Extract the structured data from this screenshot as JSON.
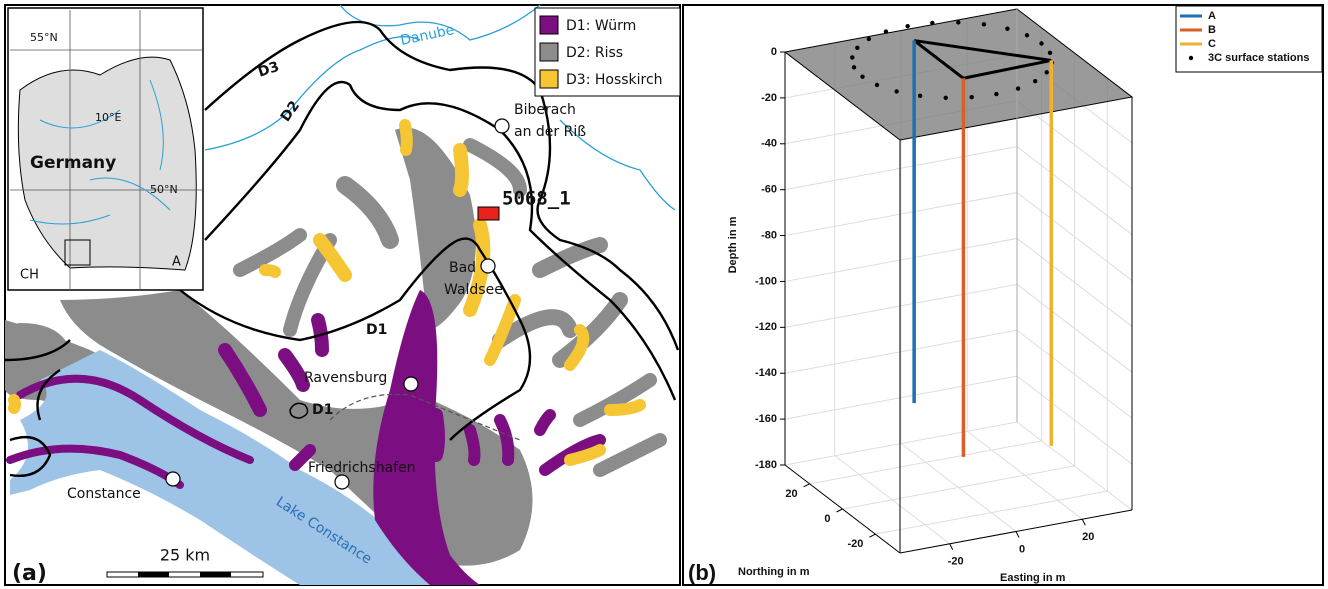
{
  "panel_a": {
    "label": "(a)",
    "legend": [
      {
        "label": "D1: Würm",
        "color": "#7b0f82"
      },
      {
        "label": "D2: Riss",
        "color": "#8c8c8c"
      },
      {
        "label": "D3: Hosskirch",
        "color": "#f5c533"
      }
    ],
    "river": "Danube",
    "boundaries": [
      "D3",
      "D2",
      "D1",
      "D1"
    ],
    "towns": [
      [
        "Biberach",
        "an der Riß"
      ],
      [
        "Bad",
        "Waldsee"
      ],
      [
        "Ravensburg"
      ],
      [
        "Friedrichshafen"
      ],
      [
        "Constance"
      ]
    ],
    "lake": "Lake Constance",
    "site": "5068_1",
    "scale": "25 km",
    "inset": {
      "labels": [
        "55°N",
        "10°E",
        "Germany",
        "50°N",
        "CH",
        "A"
      ]
    }
  },
  "chart_data": {
    "type": "line3d",
    "label": "(b)",
    "xlabel": "Easting in m",
    "ylabel": "Northing in m",
    "zlabel": "Depth in m",
    "xlim": [
      -35,
      35
    ],
    "ylim": [
      -35,
      35
    ],
    "zlim": [
      -180,
      0
    ],
    "xticks": [
      -20,
      0,
      20
    ],
    "yticks": [
      -20,
      0,
      20
    ],
    "zticks": [
      0,
      -20,
      -40,
      -60,
      -80,
      -100,
      -120,
      -140,
      -160,
      -180
    ],
    "grid": true,
    "legend": "top right",
    "series": [
      {
        "name": "A",
        "color": "#1f6fb5",
        "x": [
          0,
          0
        ],
        "y": [
          27,
          27
        ],
        "z": [
          0,
          -158
        ]
      },
      {
        "name": "B",
        "color": "#d95f26",
        "x": [
          0,
          0
        ],
        "y": [
          -3,
          -3
        ],
        "z": [
          0,
          -165
        ]
      },
      {
        "name": "C",
        "color": "#eeb22e",
        "x": [
          27,
          27
        ],
        "y": [
          -2,
          -2
        ],
        "z": [
          0,
          -168
        ]
      }
    ],
    "stations": {
      "name": "3C surface stations",
      "color": "#000000",
      "x": [
        30,
        29.1,
        26.4,
        22.1,
        16.5,
        10,
        3,
        -4,
        -10.5,
        -16.1,
        -20.4,
        -23.1,
        -24,
        -23.1,
        -20.4,
        -16.1,
        -10.5,
        -4,
        3,
        10,
        16.5,
        22.1,
        26.4,
        29.1
      ],
      "y": [
        10,
        17,
        23.5,
        29.1,
        33.4,
        36.1,
        37,
        36.1,
        33.4,
        29.1,
        23.5,
        17,
        10,
        3,
        -3.5,
        -9.1,
        -13.4,
        -16.1,
        -17,
        -16.1,
        -13.4,
        -9.1,
        -3.5,
        3
      ],
      "z": [
        0,
        0,
        0,
        0,
        0,
        0,
        0,
        0,
        0,
        0,
        0,
        0,
        0,
        0,
        0,
        0,
        0,
        0,
        0,
        0,
        0,
        0,
        0,
        0
      ]
    }
  }
}
